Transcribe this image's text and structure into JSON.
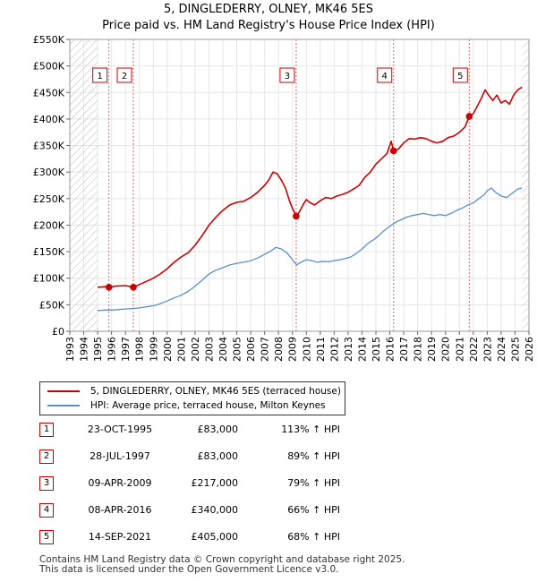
{
  "chart_data": {
    "type": "line",
    "title": "5, DINGLEDERRY, OLNEY, MK46 5ES",
    "subtitle": "Price paid vs. HM Land Registry's House Price Index (HPI)",
    "ylim": [
      0,
      550000
    ],
    "xlim": [
      1993,
      2026
    ],
    "y_ticks": [
      {
        "value": 0,
        "label": "£0"
      },
      {
        "value": 50000,
        "label": "£50K"
      },
      {
        "value": 100000,
        "label": "£100K"
      },
      {
        "value": 150000,
        "label": "£150K"
      },
      {
        "value": 200000,
        "label": "£200K"
      },
      {
        "value": 250000,
        "label": "£250K"
      },
      {
        "value": 300000,
        "label": "£300K"
      },
      {
        "value": 350000,
        "label": "£350K"
      },
      {
        "value": 400000,
        "label": "£400K"
      },
      {
        "value": 450000,
        "label": "£450K"
      },
      {
        "value": 500000,
        "label": "£500K"
      },
      {
        "value": 550000,
        "label": "£550K"
      }
    ],
    "x_ticks": [
      "1993",
      "1994",
      "1995",
      "1996",
      "1997",
      "1998",
      "1999",
      "2000",
      "2001",
      "2002",
      "2003",
      "2004",
      "2005",
      "2006",
      "2007",
      "2008",
      "2009",
      "2010",
      "2011",
      "2012",
      "2013",
      "2014",
      "2015",
      "2016",
      "2017",
      "2018",
      "2019",
      "2020",
      "2021",
      "2022",
      "2023",
      "2024",
      "2025",
      "2026"
    ],
    "grid": true,
    "series": [
      {
        "name": "5, DINGLEDERRY, OLNEY, MK46 5ES (terraced house)",
        "color": "#cc0000",
        "x": [
          1995.0,
          1995.5,
          1995.8,
          1996.3,
          1997.0,
          1997.57,
          1998.0,
          1998.5,
          1999.0,
          1999.5,
          2000.0,
          2000.5,
          2001.0,
          2001.5,
          2002.0,
          2002.5,
          2003.0,
          2003.5,
          2004.0,
          2004.5,
          2005.0,
          2005.5,
          2006.0,
          2006.5,
          2007.0,
          2007.3,
          2007.6,
          2007.9,
          2008.2,
          2008.5,
          2008.8,
          2009.0,
          2009.27,
          2009.5,
          2009.8,
          2010.0,
          2010.3,
          2010.6,
          2011.0,
          2011.4,
          2011.8,
          2012.2,
          2012.6,
          2013.0,
          2013.4,
          2013.8,
          2014.2,
          2014.6,
          2015.0,
          2015.4,
          2015.8,
          2016.1,
          2016.27,
          2016.6,
          2017.0,
          2017.4,
          2017.8,
          2018.2,
          2018.6,
          2019.0,
          2019.4,
          2019.8,
          2020.2,
          2020.6,
          2021.0,
          2021.4,
          2021.71,
          2022.0,
          2022.3,
          2022.6,
          2022.85,
          2023.1,
          2023.4,
          2023.7,
          2024.0,
          2024.3,
          2024.6,
          2024.9,
          2025.2,
          2025.5
        ],
        "values": [
          83000,
          84000,
          83000,
          85000,
          86000,
          83000,
          88000,
          94000,
          100000,
          108000,
          118000,
          130000,
          140000,
          148000,
          162000,
          180000,
          200000,
          215000,
          228000,
          238000,
          243000,
          245000,
          252000,
          262000,
          275000,
          285000,
          300000,
          297000,
          285000,
          270000,
          245000,
          232000,
          217000,
          225000,
          240000,
          248000,
          242000,
          238000,
          246000,
          252000,
          250000,
          255000,
          258000,
          262000,
          268000,
          275000,
          290000,
          300000,
          315000,
          325000,
          335000,
          358000,
          340000,
          343000,
          355000,
          363000,
          362000,
          365000,
          363000,
          358000,
          355000,
          358000,
          365000,
          368000,
          375000,
          385000,
          405000,
          410000,
          425000,
          440000,
          455000,
          445000,
          435000,
          445000,
          430000,
          435000,
          428000,
          445000,
          455000,
          460000
        ]
      },
      {
        "name": "HPI: Average price, terraced house, Milton Keynes",
        "color": "#5b8fc9",
        "x": [
          1995.0,
          1995.5,
          1996.0,
          1996.5,
          1997.0,
          1997.5,
          1998.0,
          1998.5,
          1999.0,
          1999.5,
          2000.0,
          2000.5,
          2001.0,
          2001.5,
          2002.0,
          2002.5,
          2003.0,
          2003.5,
          2004.0,
          2004.5,
          2005.0,
          2005.5,
          2006.0,
          2006.5,
          2007.0,
          2007.5,
          2007.8,
          2008.2,
          2008.6,
          2009.0,
          2009.3,
          2009.6,
          2010.0,
          2010.4,
          2010.8,
          2011.2,
          2011.6,
          2012.0,
          2012.4,
          2012.8,
          2013.2,
          2013.6,
          2014.0,
          2014.4,
          2014.8,
          2015.2,
          2015.6,
          2016.0,
          2016.4,
          2016.8,
          2017.2,
          2017.6,
          2018.0,
          2018.4,
          2018.8,
          2019.2,
          2019.6,
          2020.0,
          2020.4,
          2020.8,
          2021.2,
          2021.6,
          2022.0,
          2022.4,
          2022.8,
          2023.0,
          2023.3,
          2023.6,
          2024.0,
          2024.4,
          2024.8,
          2025.2,
          2025.5
        ],
        "values": [
          39000,
          40000,
          40000,
          41000,
          42000,
          43000,
          44000,
          46000,
          48000,
          52000,
          57000,
          63000,
          68000,
          75000,
          85000,
          96000,
          108000,
          115000,
          120000,
          125000,
          128000,
          130000,
          133000,
          138000,
          145000,
          152000,
          158000,
          155000,
          148000,
          135000,
          125000,
          130000,
          135000,
          133000,
          130000,
          132000,
          131000,
          133000,
          135000,
          137000,
          140000,
          147000,
          155000,
          165000,
          172000,
          180000,
          190000,
          198000,
          205000,
          210000,
          215000,
          218000,
          220000,
          222000,
          220000,
          218000,
          220000,
          218000,
          222000,
          228000,
          232000,
          238000,
          242000,
          250000,
          258000,
          265000,
          270000,
          262000,
          255000,
          252000,
          260000,
          268000,
          270000
        ]
      }
    ],
    "sales": [
      {
        "num": "1",
        "date": "23-OCT-1995",
        "price": "£83,000",
        "hpi": "113% ↑ HPI",
        "x": 1995.81,
        "value": 83000
      },
      {
        "num": "2",
        "date": "28-JUL-1997",
        "price": "£83,000",
        "hpi": "89% ↑ HPI",
        "x": 1997.57,
        "value": 83000
      },
      {
        "num": "3",
        "date": "09-APR-2009",
        "price": "£217,000",
        "hpi": "79% ↑ HPI",
        "x": 2009.27,
        "value": 217000
      },
      {
        "num": "4",
        "date": "08-APR-2016",
        "price": "£340,000",
        "hpi": "66% ↑ HPI",
        "x": 2016.27,
        "value": 340000
      },
      {
        "num": "5",
        "date": "14-SEP-2021",
        "price": "£405,000",
        "hpi": "68% ↑ HPI",
        "x": 2021.71,
        "value": 405000
      }
    ],
    "hatch_ranges": [
      [
        1993,
        1995.0
      ],
      [
        2025.5,
        2026
      ]
    ]
  },
  "legend": {
    "property": "5, DINGLEDERRY, OLNEY, MK46 5ES (terraced house)",
    "hpi": "HPI: Average price, terraced house, Milton Keynes",
    "property_color": "#cc0000",
    "hpi_color": "#5b8fc9"
  },
  "footer": {
    "line1": "Contains HM Land Registry data © Crown copyright and database right 2025.",
    "line2": "This data is licensed under the Open Government Licence v3.0."
  }
}
